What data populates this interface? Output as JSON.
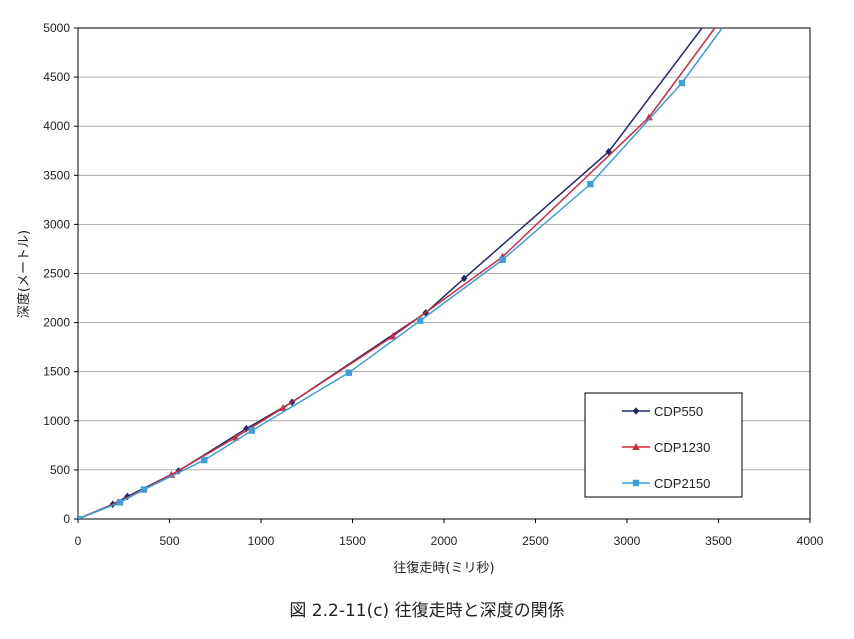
{
  "chart_data": {
    "type": "line",
    "xlabel": "往復走時(ミリ秒)",
    "ylabel": "深度(メートル)",
    "xlim": [
      0,
      4000
    ],
    "ylim": [
      0,
      5000
    ],
    "x_ticks": [
      "0",
      "500",
      "1000",
      "1500",
      "2000",
      "2500",
      "3000",
      "3500",
      "4000"
    ],
    "y_ticks": [
      "0",
      "500",
      "1000",
      "1500",
      "2000",
      "2500",
      "3000",
      "3500",
      "4000",
      "4500",
      "5000"
    ],
    "grid": "horizontal",
    "legend_position": "lower-right",
    "series": [
      {
        "name": "CDP550",
        "color": "#1f2a6b",
        "marker": "diamond",
        "points": [
          [
            0,
            0
          ],
          [
            190,
            150
          ],
          [
            270,
            230
          ],
          [
            550,
            490
          ],
          [
            920,
            920
          ],
          [
            1170,
            1190
          ],
          [
            1900,
            2100
          ],
          [
            2110,
            2450
          ],
          [
            2900,
            3740
          ]
        ],
        "curve": [
          [
            0,
            0
          ],
          [
            190,
            150
          ],
          [
            270,
            230
          ],
          [
            550,
            490
          ],
          [
            920,
            920
          ],
          [
            1170,
            1190
          ],
          [
            1900,
            2100
          ],
          [
            2110,
            2450
          ],
          [
            2900,
            3740
          ],
          [
            3410,
            5000
          ]
        ]
      },
      {
        "name": "CDP1230",
        "color": "#d42a40",
        "marker": "triangle",
        "points": [
          [
            0,
            0
          ],
          [
            220,
            170
          ],
          [
            510,
            450
          ],
          [
            860,
            830
          ],
          [
            1120,
            1130
          ],
          [
            1720,
            1860
          ],
          [
            2320,
            2670
          ],
          [
            3120,
            4090
          ]
        ],
        "curve": [
          [
            0,
            0
          ],
          [
            220,
            170
          ],
          [
            510,
            450
          ],
          [
            860,
            830
          ],
          [
            1120,
            1130
          ],
          [
            1720,
            1860
          ],
          [
            2320,
            2670
          ],
          [
            3120,
            4090
          ],
          [
            3480,
            5000
          ]
        ]
      },
      {
        "name": "CDP2150",
        "color": "#3aa0d8",
        "marker": "square",
        "points": [
          [
            0,
            0
          ],
          [
            230,
            170
          ],
          [
            360,
            300
          ],
          [
            690,
            600
          ],
          [
            950,
            900
          ],
          [
            1480,
            1490
          ],
          [
            1870,
            2020
          ],
          [
            2320,
            2640
          ],
          [
            2800,
            3410
          ],
          [
            3300,
            4440
          ]
        ],
        "curve": [
          [
            0,
            0
          ],
          [
            230,
            170
          ],
          [
            360,
            300
          ],
          [
            690,
            600
          ],
          [
            950,
            900
          ],
          [
            1480,
            1490
          ],
          [
            1870,
            2020
          ],
          [
            2320,
            2640
          ],
          [
            2800,
            3410
          ],
          [
            3300,
            4440
          ],
          [
            3520,
            5000
          ]
        ]
      }
    ]
  },
  "caption": "図 2.2-11(c)  往復走時と深度の関係"
}
